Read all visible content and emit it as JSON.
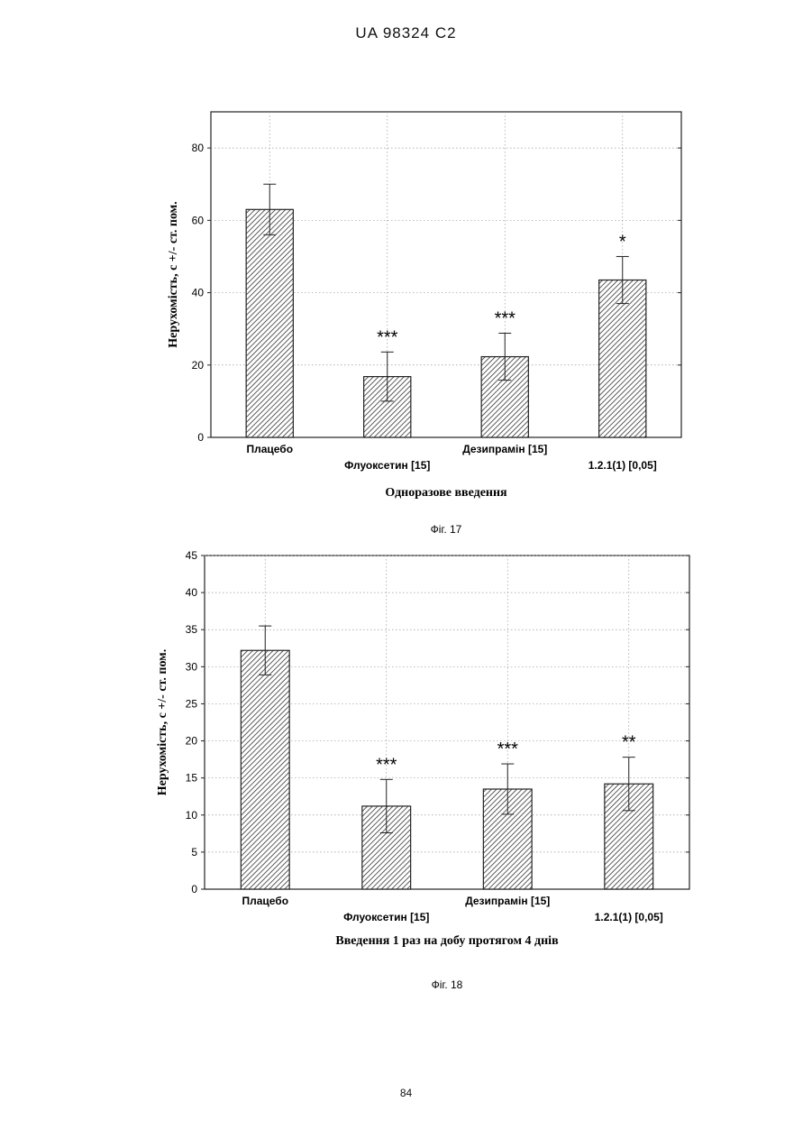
{
  "header": "UA 98324 C2",
  "page_number": "84",
  "chart_data": [
    {
      "type": "bar",
      "caption": "Фіг. 17",
      "categories": [
        "Плацебо",
        "Флуоксетин [15]",
        "Дезипрамін [15]",
        "1.2.1(1) [0,05]"
      ],
      "values": [
        63,
        16.8,
        22.3,
        43.5
      ],
      "errors": [
        7,
        6.8,
        6.5,
        6.5
      ],
      "significance": [
        "",
        "***",
        "***",
        "*"
      ],
      "ylabel": "Нерухомість, с +/- ст. пом.",
      "xlabel": "Одноразове введення",
      "ylim": [
        0,
        90
      ],
      "yticks": [
        0,
        20,
        40,
        60,
        80
      ],
      "bar_fill": "hatched",
      "grid": "dotted"
    },
    {
      "type": "bar",
      "caption": "Фіг. 18",
      "categories": [
        "Плацебо",
        "Флуоксетин [15]",
        "Дезипрамін [15]",
        "1.2.1(1) [0,05]"
      ],
      "values": [
        32.2,
        11.2,
        13.5,
        14.2
      ],
      "errors": [
        3.3,
        3.6,
        3.4,
        3.6
      ],
      "significance": [
        "",
        "***",
        "***",
        "**"
      ],
      "ylabel": "Нерухомість, с +/- ст. пом.",
      "xlabel": "Введення 1 раз на добу протягом 4 днів",
      "ylim": [
        0,
        45
      ],
      "yticks": [
        0,
        5,
        10,
        15,
        20,
        25,
        30,
        35,
        40,
        45
      ],
      "bar_fill": "hatched",
      "grid": "dotted"
    }
  ]
}
